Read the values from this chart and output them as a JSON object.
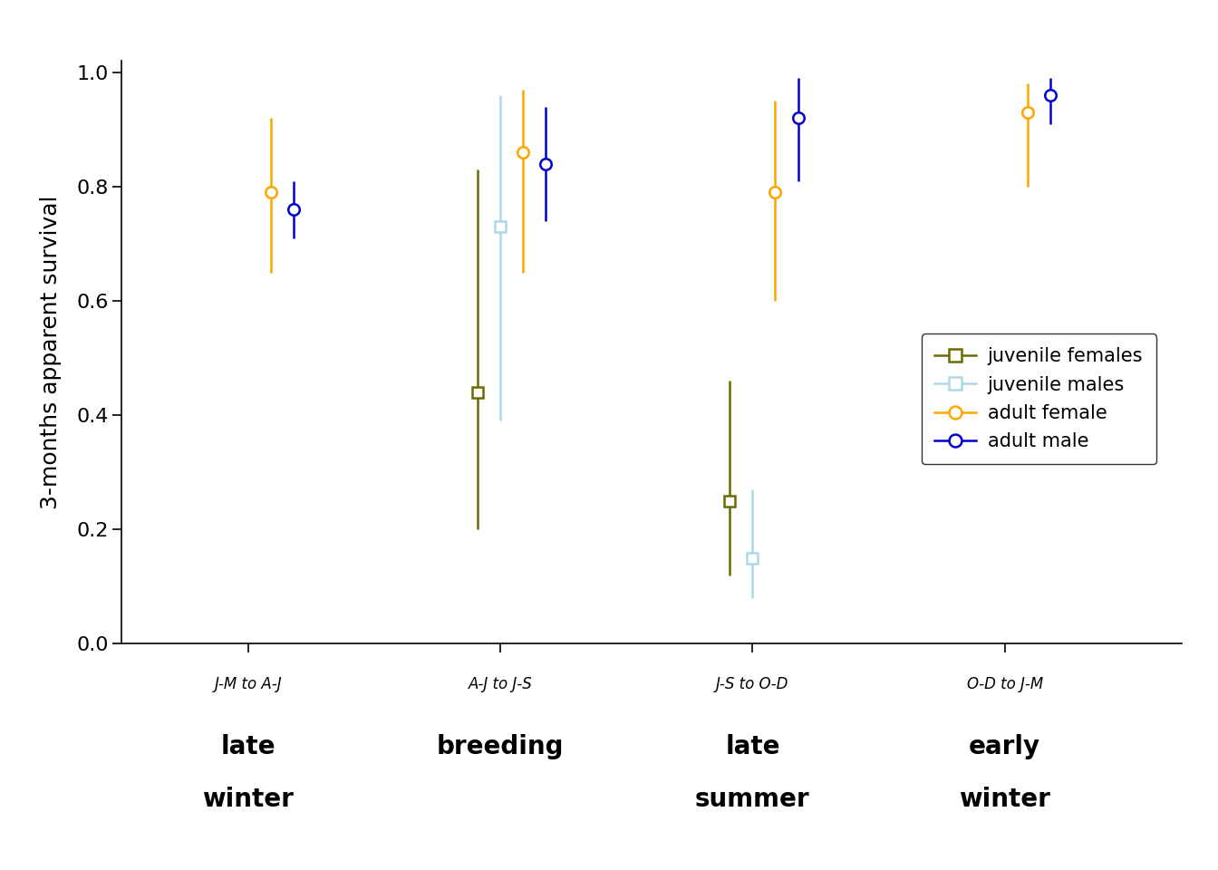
{
  "season_labels_top": [
    "J-M to A-J",
    "A-J to J-S",
    "J-S to O-D",
    "O-D to J-M"
  ],
  "season_labels_bottom": [
    "late\nwinter",
    "breeding",
    "late\nsummer",
    "early\nwinter"
  ],
  "x_positions": [
    1,
    2,
    3,
    4
  ],
  "groups": {
    "juvenile_female": {
      "color": "#6b6b00",
      "marker": "s",
      "label": "juvenile females",
      "means": [
        null,
        0.44,
        0.25,
        null
      ],
      "lower": [
        null,
        0.2,
        0.12,
        null
      ],
      "upper": [
        null,
        0.83,
        0.46,
        null
      ]
    },
    "juvenile_male": {
      "color": "#add8e6",
      "marker": "s",
      "label": "juvenile males",
      "means": [
        null,
        0.73,
        0.15,
        null
      ],
      "lower": [
        null,
        0.39,
        0.08,
        null
      ],
      "upper": [
        null,
        0.96,
        0.27,
        null
      ]
    },
    "adult_female": {
      "color": "#FFA500",
      "marker": "o",
      "label": "adult female",
      "means": [
        0.79,
        0.86,
        0.79,
        0.93
      ],
      "lower": [
        0.65,
        0.65,
        0.6,
        0.8
      ],
      "upper": [
        0.92,
        0.97,
        0.95,
        0.98
      ]
    },
    "adult_male": {
      "color": "#0000CD",
      "marker": "o",
      "label": "adult male",
      "means": [
        0.76,
        0.84,
        0.92,
        0.96
      ],
      "lower": [
        0.71,
        0.74,
        0.81,
        0.91
      ],
      "upper": [
        0.81,
        0.94,
        0.99,
        0.99
      ]
    }
  },
  "x_offsets": {
    "juvenile_female": -0.09,
    "juvenile_male": 0.0,
    "adult_female": 0.09,
    "adult_male": 0.18
  },
  "ylim": [
    0.0,
    1.02
  ],
  "yticks": [
    0.0,
    0.2,
    0.4,
    0.6,
    0.8,
    1.0
  ],
  "ylabel": "3-months apparent survival",
  "background_color": "#ffffff",
  "markersize": 9,
  "linewidth": 1.8,
  "marker_edgewidth": 1.8
}
